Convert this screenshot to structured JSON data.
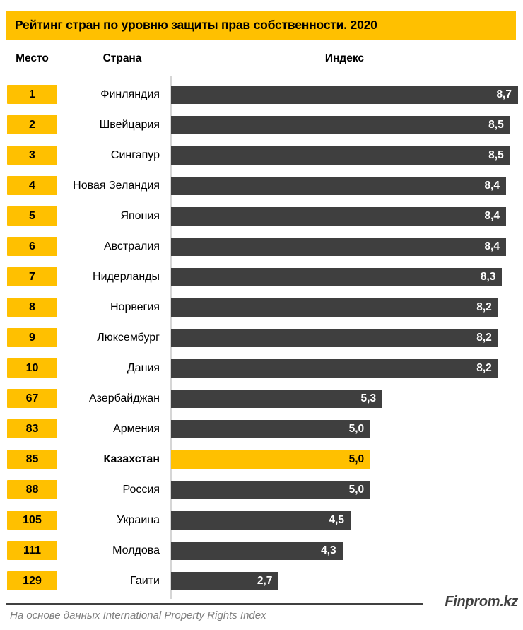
{
  "title": "Рейтинг стран по уровню защиты прав собственности. 2020",
  "headers": {
    "rank": "Место",
    "country": "Страна",
    "index": "Индекс"
  },
  "chart_data": {
    "type": "bar",
    "orientation": "horizontal",
    "title": "Рейтинг стран по уровню защиты прав собственности. 2020",
    "xlabel": "Индекс",
    "xlim": [
      0,
      8.7
    ],
    "grid": false,
    "legend": "none",
    "highlighted_country": "Казахстан",
    "rows": [
      {
        "rank": "1",
        "country": "Финляндия",
        "value": 8.7,
        "label": "8,7",
        "highlight": false
      },
      {
        "rank": "2",
        "country": "Швейцария",
        "value": 8.5,
        "label": "8,5",
        "highlight": false
      },
      {
        "rank": "3",
        "country": "Сингапур",
        "value": 8.5,
        "label": "8,5",
        "highlight": false
      },
      {
        "rank": "4",
        "country": "Новая Зеландия",
        "value": 8.4,
        "label": "8,4",
        "highlight": false
      },
      {
        "rank": "5",
        "country": "Япония",
        "value": 8.4,
        "label": "8,4",
        "highlight": false
      },
      {
        "rank": "6",
        "country": "Австралия",
        "value": 8.4,
        "label": "8,4",
        "highlight": false
      },
      {
        "rank": "7",
        "country": "Нидерланды",
        "value": 8.3,
        "label": "8,3",
        "highlight": false
      },
      {
        "rank": "8",
        "country": "Норвегия",
        "value": 8.2,
        "label": "8,2",
        "highlight": false
      },
      {
        "rank": "9",
        "country": "Люксембург",
        "value": 8.2,
        "label": "8,2",
        "highlight": false
      },
      {
        "rank": "10",
        "country": "Дания",
        "value": 8.2,
        "label": "8,2",
        "highlight": false
      },
      {
        "rank": "67",
        "country": "Азербайджан",
        "value": 5.3,
        "label": "5,3",
        "highlight": false
      },
      {
        "rank": "83",
        "country": "Армения",
        "value": 5.0,
        "label": "5,0",
        "highlight": false
      },
      {
        "rank": "85",
        "country": "Казахстан",
        "value": 5.0,
        "label": "5,0",
        "highlight": true
      },
      {
        "rank": "88",
        "country": "Россия",
        "value": 5.0,
        "label": "5,0",
        "highlight": false
      },
      {
        "rank": "105",
        "country": "Украина",
        "value": 4.5,
        "label": "4,5",
        "highlight": false
      },
      {
        "rank": "111",
        "country": "Молдова",
        "value": 4.3,
        "label": "4,3",
        "highlight": false
      },
      {
        "rank": "129",
        "country": "Гаити",
        "value": 2.7,
        "label": "2,7",
        "highlight": false
      }
    ]
  },
  "footer": {
    "brand": "Finprom.kz",
    "source": "На основе данных International Property Rights Index"
  },
  "colors": {
    "accent": "#FFC000",
    "bar": "#3F3F3F",
    "bar_label": "#FFFFFF",
    "axis_line": "#D6D6D6",
    "brand_text": "#404040",
    "source_text": "#7F7F7F"
  }
}
